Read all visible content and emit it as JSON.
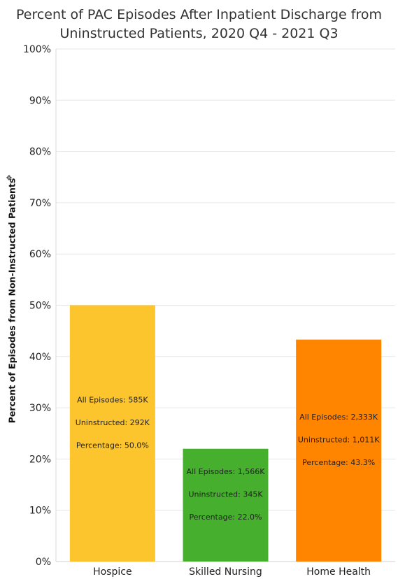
{
  "chart_data": {
    "type": "bar",
    "title_lines": [
      "Percent of PAC Episodes After Inpatient Discharge from",
      "Uninstructed Patients, 2020 Q4 - 2021 Q3"
    ],
    "ylabel": "Percent of Episodes from Non-Instructed Patients",
    "xlabel": "",
    "ylim": [
      0,
      100
    ],
    "yticks": [
      "0%",
      "10%",
      "20%",
      "30%",
      "40%",
      "50%",
      "60%",
      "70%",
      "80%",
      "90%",
      "100%"
    ],
    "categories": [
      "Hospice",
      "Skilled Nursing",
      "Home Health"
    ],
    "values": [
      50.0,
      22.0,
      43.3
    ],
    "colors": [
      "#FCC42D",
      "#46AF2D",
      "#FF8400"
    ],
    "bar_labels": [
      [
        "All Episodes: 585K",
        "Uninstructed: 292K",
        "Percentage: 50.0%"
      ],
      [
        "All Episodes: 1,566K",
        "Uninstructed: 345K",
        "Percentage: 22.0%"
      ],
      [
        "All Episodes: 2,333K",
        "Uninstructed: 1,011K",
        "Percentage: 43.3%"
      ]
    ],
    "grid": true,
    "legend": "none"
  },
  "icons": {
    "pin": "pin-icon"
  }
}
